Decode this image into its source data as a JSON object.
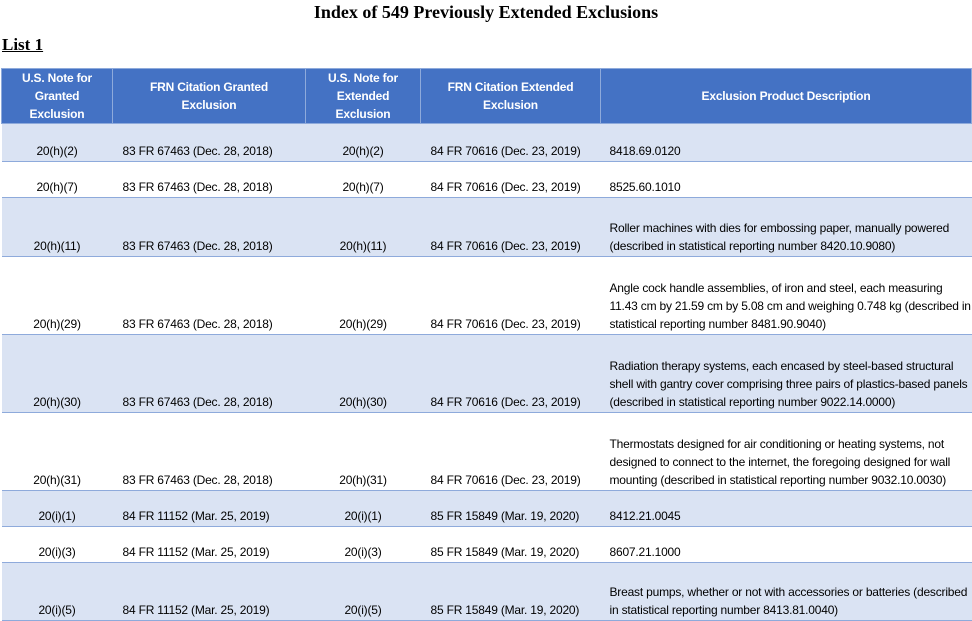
{
  "title": "Index of 549 Previously Extended Exclusions",
  "list_label": "List 1",
  "colors": {
    "header": "#4472c4",
    "band": "#dae3f3",
    "border": "#8eaadb"
  },
  "headers": [
    "U.S. Note for Granted Exclusion",
    "FRN Citation Granted Exclusion",
    "U.S. Note for Extended Exclusion",
    "FRN Citation Extended Exclusion",
    "Exclusion Product Description"
  ],
  "rows": [
    [
      "20(h)(2)",
      "83 FR 67463 (Dec. 28, 2018)",
      "20(h)(2)",
      "84 FR 70616 (Dec. 23, 2019)",
      "8418.69.0120"
    ],
    [
      "20(h)(7)",
      "83 FR 67463 (Dec. 28, 2018)",
      "20(h)(7)",
      "84 FR 70616 (Dec. 23, 2019)",
      "8525.60.1010"
    ],
    [
      "20(h)(11)",
      "83 FR 67463 (Dec. 28, 2018)",
      "20(h)(11)",
      "84 FR 70616 (Dec. 23, 2019)",
      "Roller machines with dies for embossing paper, manually powered (described in statistical reporting number 8420.10.9080)"
    ],
    [
      "20(h)(29)",
      "83 FR 67463 (Dec. 28, 2018)",
      "20(h)(29)",
      "84 FR 70616 (Dec. 23, 2019)",
      "Angle cock handle assemblies, of iron and steel, each measuring 11.43 cm by 21.59 cm by 5.08 cm and weighing 0.748 kg (described in statistical reporting number 8481.90.9040)"
    ],
    [
      "20(h)(30)",
      "83 FR 67463 (Dec. 28, 2018)",
      "20(h)(30)",
      "84 FR 70616 (Dec. 23, 2019)",
      "Radiation therapy systems, each encased by steel-based structural shell with gantry cover comprising three pairs of plastics-based panels (described in statistical reporting number 9022.14.0000)"
    ],
    [
      "20(h)(31)",
      "83 FR 67463 (Dec. 28, 2018)",
      "20(h)(31)",
      "84 FR 70616 (Dec. 23, 2019)",
      "Thermostats designed for air conditioning or heating systems, not designed to connect to the internet, the foregoing designed for wall mounting (described in statistical reporting number 9032.10.0030)"
    ],
    [
      "20(i)(1)",
      "84 FR 11152 (Mar. 25, 2019)",
      "20(i)(1)",
      "85 FR 15849 (Mar. 19, 2020)",
      "8412.21.0045"
    ],
    [
      "20(i)(3)",
      "84 FR 11152 (Mar. 25, 2019)",
      "20(i)(3)",
      "85 FR 15849 (Mar. 19, 2020)",
      "8607.21.1000"
    ],
    [
      "20(i)(5)",
      "84 FR 11152 (Mar. 25, 2019)",
      "20(i)(5)",
      "85 FR 15849 (Mar. 19, 2020)",
      "Breast pumps, whether or not with accessories or batteries (described in statistical reporting number 8413.81.0040)"
    ]
  ]
}
